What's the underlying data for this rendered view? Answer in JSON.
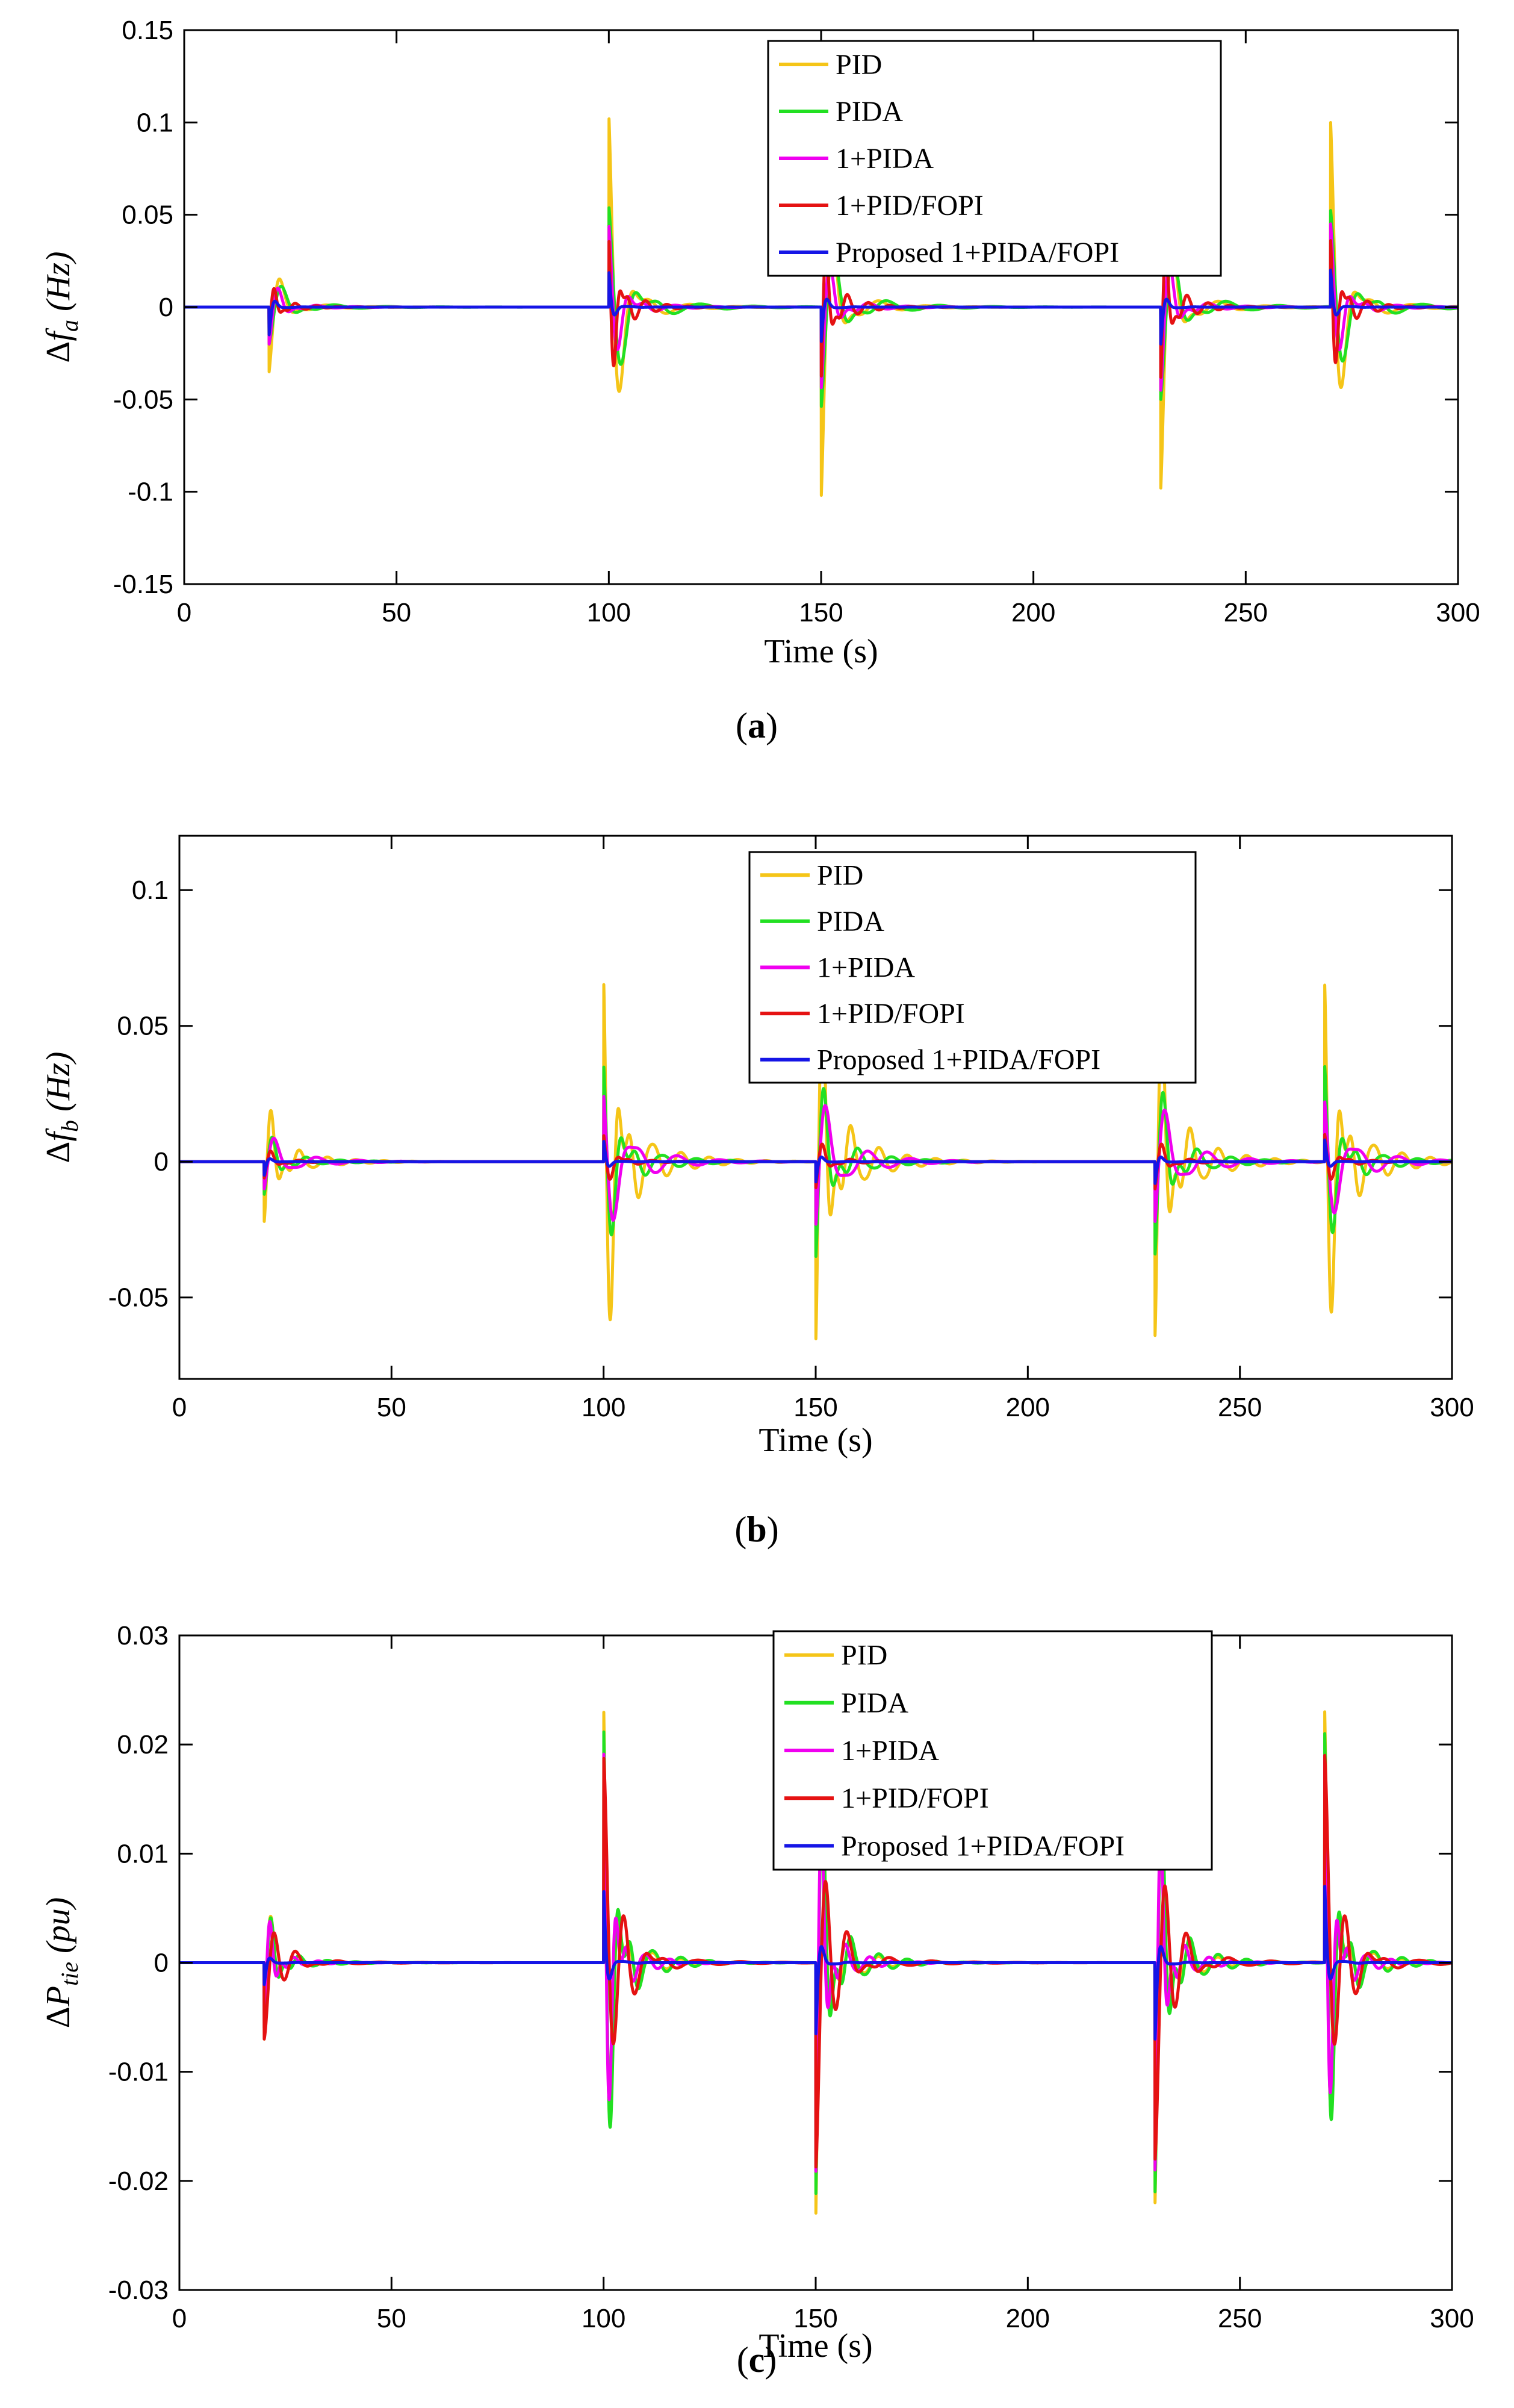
{
  "figure": {
    "colors": {
      "PID": "#F5C518",
      "PIDA": "#22E022",
      "1+PIDA": "#F000F0",
      "1+PID/FOPI": "#E51212",
      "Proposed 1+PIDA/FOPI": "#1515E6"
    }
  },
  "chart_data": [
    {
      "type": "line",
      "panel_id": "a",
      "caption_letter": "a",
      "caption_open": "(",
      "caption_close": ")",
      "xlabel": "Time (s)",
      "ylabel_delta": "Δ",
      "ylabel_var": "f",
      "ylabel_sub": "a",
      "ylabel_unit": "(Hz)",
      "xlim": [
        0,
        300
      ],
      "ylim": [
        -0.15,
        0.15
      ],
      "xticks": [
        0,
        50,
        100,
        150,
        200,
        250,
        300
      ],
      "xtick_labels": [
        "0",
        "50",
        "100",
        "150",
        "200",
        "250",
        "300"
      ],
      "yticks": [
        -0.15,
        -0.1,
        -0.05,
        0,
        0.05,
        0.1,
        0.15
      ],
      "ytick_labels": [
        "-0.15",
        "-0.1",
        "-0.05",
        "0",
        "0.05",
        "0.1",
        "0.15"
      ],
      "legend_position": "top-center",
      "events": [
        20,
        100,
        150,
        230,
        270
      ],
      "series": [
        {
          "name": "PID",
          "peaks": [
            -0.035,
            0.105,
            -0.105,
            -0.098,
            0.1
          ],
          "decay": 2.2,
          "freq": 0.18,
          "rebound": -0.18
        },
        {
          "name": "PIDA",
          "peaks": [
            -0.02,
            0.055,
            -0.055,
            -0.05,
            0.052
          ],
          "decay": 3.2,
          "freq": 0.16,
          "rebound": -0.22
        },
        {
          "name": "1+PIDA",
          "peaks": [
            -0.02,
            0.045,
            -0.045,
            -0.045,
            0.045
          ],
          "decay": 2.2,
          "freq": 0.22,
          "rebound": -0.18
        },
        {
          "name": "1+PID/FOPI",
          "peaks": [
            -0.012,
            0.038,
            -0.04,
            -0.038,
            0.036
          ],
          "decay": 1.6,
          "freq": 0.4,
          "rebound": -0.45
        },
        {
          "name": "Proposed 1+PIDA/FOPI",
          "peaks": [
            -0.015,
            0.02,
            -0.02,
            -0.02,
            0.02
          ],
          "decay": 0.8,
          "freq": 0.3,
          "rebound": -0.1
        }
      ]
    },
    {
      "type": "line",
      "panel_id": "b",
      "caption_letter": "b",
      "caption_open": "(",
      "caption_close": ")",
      "xlabel": "Time (s)",
      "ylabel_delta": "Δ",
      "ylabel_var": "f",
      "ylabel_sub": "b",
      "ylabel_unit": "(Hz)",
      "xlim": [
        0,
        300
      ],
      "ylim": [
        -0.08,
        0.12
      ],
      "xticks": [
        0,
        50,
        100,
        150,
        200,
        250,
        300
      ],
      "xtick_labels": [
        "0",
        "50",
        "100",
        "150",
        "200",
        "250",
        "300"
      ],
      "yticks": [
        -0.05,
        0,
        0.05,
        0.1
      ],
      "ytick_labels": [
        "-0.05",
        "0",
        "0.05",
        "0.1"
      ],
      "legend_position": "top-center",
      "events": [
        20,
        100,
        150,
        230,
        270
      ],
      "series": [
        {
          "name": "PID",
          "peaks": [
            -0.022,
            0.068,
            -0.068,
            -0.064,
            0.065
          ],
          "decay": 2.6,
          "freq": 0.3,
          "rebound": -0.38
        },
        {
          "name": "PIDA",
          "peaks": [
            -0.012,
            0.036,
            -0.036,
            -0.034,
            0.035
          ],
          "decay": 2.8,
          "freq": 0.25,
          "rebound": -0.3
        },
        {
          "name": "1+PIDA",
          "peaks": [
            -0.01,
            0.025,
            -0.024,
            -0.022,
            0.022
          ],
          "decay": 2.6,
          "freq": 0.2,
          "rebound": -0.6
        },
        {
          "name": "1+PID/FOPI",
          "peaks": [
            -0.006,
            0.01,
            -0.01,
            -0.01,
            0.01
          ],
          "decay": 1.8,
          "freq": 0.3,
          "rebound": -0.3
        },
        {
          "name": "Proposed 1+PIDA/FOPI",
          "peaks": [
            -0.005,
            0.008,
            -0.008,
            -0.008,
            0.008
          ],
          "decay": 0.8,
          "freq": 0.3,
          "rebound": -0.1
        }
      ]
    },
    {
      "type": "line",
      "panel_id": "c",
      "caption_letter": "c",
      "caption_open": "(",
      "caption_close": ")",
      "xlabel": "Time (s)",
      "ylabel_delta": "Δ",
      "ylabel_var": "P",
      "ylabel_sub": "tie",
      "ylabel_unit": "(pu)",
      "xlim": [
        0,
        300
      ],
      "ylim": [
        -0.03,
        0.03
      ],
      "xticks": [
        0,
        50,
        100,
        150,
        200,
        250,
        300
      ],
      "xtick_labels": [
        "0",
        "50",
        "100",
        "150",
        "200",
        "250",
        "300"
      ],
      "yticks": [
        -0.03,
        -0.02,
        -0.01,
        0,
        0.01,
        0.02,
        0.03
      ],
      "ytick_labels": [
        "-0.03",
        "-0.02",
        "-0.01",
        "0",
        "0.01",
        "0.02",
        "0.03"
      ],
      "legend_position": "top-center",
      "events": [
        20,
        100,
        150,
        230,
        270
      ],
      "series": [
        {
          "name": "PID",
          "peaks": [
            -0.007,
            0.024,
            -0.024,
            -0.022,
            0.023
          ],
          "decay": 1.8,
          "freq": 0.3,
          "rebound": -0.25
        },
        {
          "name": "PIDA",
          "peaks": [
            -0.006,
            0.022,
            -0.022,
            -0.021,
            0.021
          ],
          "decay": 2.2,
          "freq": 0.3,
          "rebound": -0.25
        },
        {
          "name": "1+PIDA",
          "peaks": [
            -0.006,
            0.02,
            -0.02,
            -0.019,
            0.019
          ],
          "decay": 1.8,
          "freq": 0.35,
          "rebound": -0.2
        },
        {
          "name": "1+PID/FOPI",
          "peaks": [
            -0.007,
            0.019,
            -0.019,
            -0.018,
            0.019
          ],
          "decay": 3.2,
          "freq": 0.2,
          "rebound": 0.1
        },
        {
          "name": "Proposed 1+PIDA/FOPI",
          "peaks": [
            -0.002,
            0.007,
            -0.007,
            -0.007,
            0.007
          ],
          "decay": 0.8,
          "freq": 0.3,
          "rebound": -0.1
        }
      ]
    }
  ]
}
